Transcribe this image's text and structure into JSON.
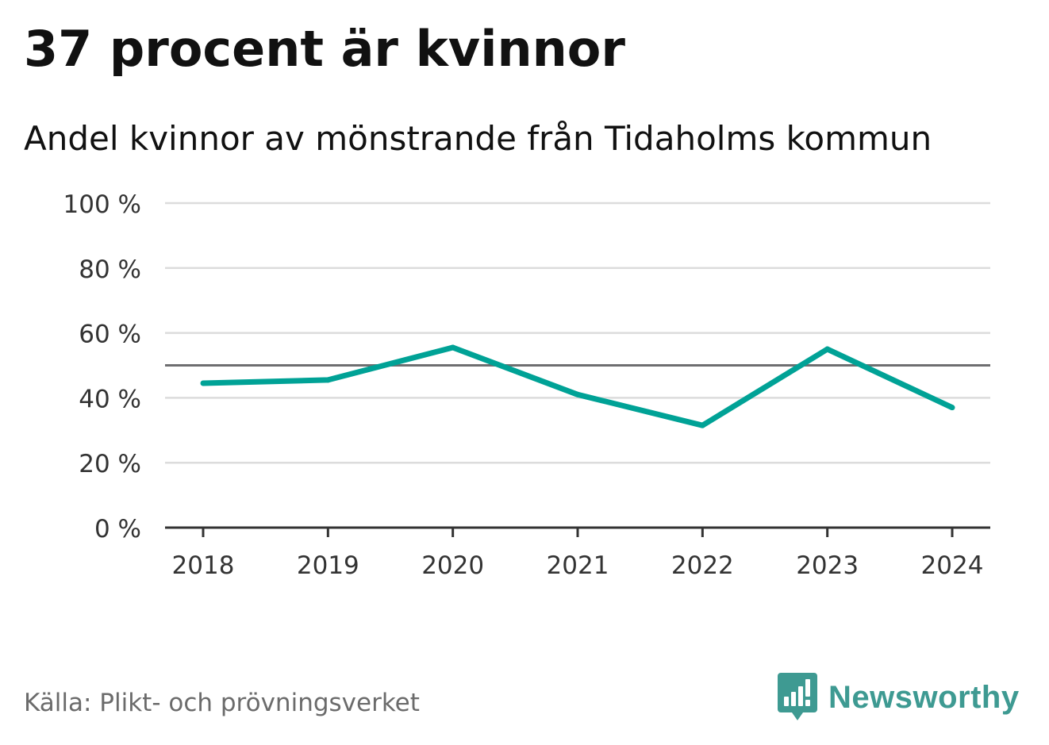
{
  "header": {
    "title": "37 procent är kvinnor",
    "subtitle": "Andel kvinnor av mönstrande från Tidaholms kommun"
  },
  "footer": {
    "source": "Källa: Plikt- och prövningsverket",
    "brand": "Newsworthy"
  },
  "colors": {
    "line": "#00a296",
    "reference": "#6e6e70",
    "grid": "#dcdcdc",
    "axis": "#333333",
    "tick_text": "#333333",
    "brand": "#3e9a92"
  },
  "chart_data": {
    "type": "line",
    "title": "37 procent är kvinnor",
    "subtitle": "Andel kvinnor av mönstrande från Tidaholms kommun",
    "xlabel": "",
    "ylabel": "",
    "categories": [
      "2018",
      "2019",
      "2020",
      "2021",
      "2022",
      "2023",
      "2024"
    ],
    "series": [
      {
        "values": [
          44.5,
          45.5,
          55.5,
          41,
          31.5,
          55,
          37
        ]
      }
    ],
    "reference_line": 50,
    "ylim": [
      0,
      100
    ],
    "yticks": [
      0,
      20,
      40,
      60,
      80,
      100
    ],
    "ytick_labels": [
      "0 %",
      "20 %",
      "40 %",
      "60 %",
      "80 %",
      "100 %"
    ],
    "grid": true,
    "legend": "none"
  }
}
